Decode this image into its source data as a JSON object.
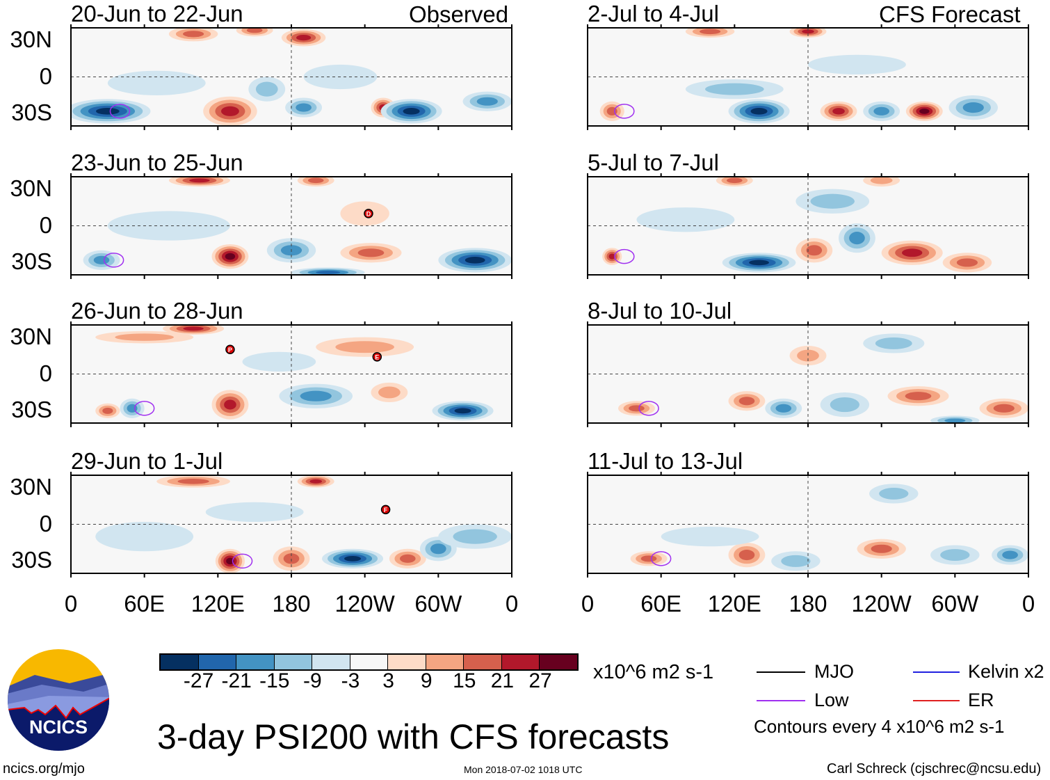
{
  "observed_label": "Observed",
  "forecast_label": "CFS Forecast",
  "panels": [
    {
      "title": "20-Jun to 22-Jun",
      "column": "observed"
    },
    {
      "title": "23-Jun to 25-Jun",
      "column": "observed",
      "storms": [
        "D"
      ]
    },
    {
      "title": "26-Jun to 28-Jun",
      "column": "observed",
      "storms": [
        "P",
        "E"
      ]
    },
    {
      "title": "29-Jun to 1-Jul",
      "column": "observed",
      "storms": [
        "F"
      ]
    },
    {
      "title": "2-Jul to 4-Jul",
      "column": "forecast"
    },
    {
      "title": "5-Jul to 7-Jul",
      "column": "forecast"
    },
    {
      "title": "8-Jul to 10-Jul",
      "column": "forecast"
    },
    {
      "title": "11-Jul to 13-Jul",
      "column": "forecast"
    }
  ],
  "lat_labels": [
    "30N",
    "0",
    "30S"
  ],
  "lon_labels": [
    "0",
    "60E",
    "120E",
    "180",
    "120W",
    "60W",
    "0"
  ],
  "colorbar": {
    "colors": [
      "#053061",
      "#2166ac",
      "#4393c3",
      "#92c5de",
      "#d1e5f0",
      "#f7f7f7",
      "#fddbc7",
      "#f4a582",
      "#d6604d",
      "#b2182b",
      "#67001f"
    ],
    "labels": [
      "-27",
      "-21",
      "-15",
      "-9",
      "-3",
      "3",
      "9",
      "15",
      "21",
      "27"
    ],
    "units": "x10^6 m2 s-1"
  },
  "legend": {
    "items": [
      {
        "label": "MJO",
        "color": "#000000"
      },
      {
        "label": "Kelvin x2",
        "color": "#2020e0"
      },
      {
        "label": "Low",
        "color": "#a030f0"
      },
      {
        "label": "ER",
        "color": "#e02020"
      }
    ],
    "contours_note": "Contours every 4 x10^6 m2 s-1"
  },
  "title": "3-day PSI200 with CFS forecasts",
  "logo_text": "NCICS",
  "url": "ncics.org/mjo",
  "timestamp": "Mon 2018-07-02 1018 UTC",
  "credit": "Carl Schreck (cjschrec@ncsu.edu)"
}
